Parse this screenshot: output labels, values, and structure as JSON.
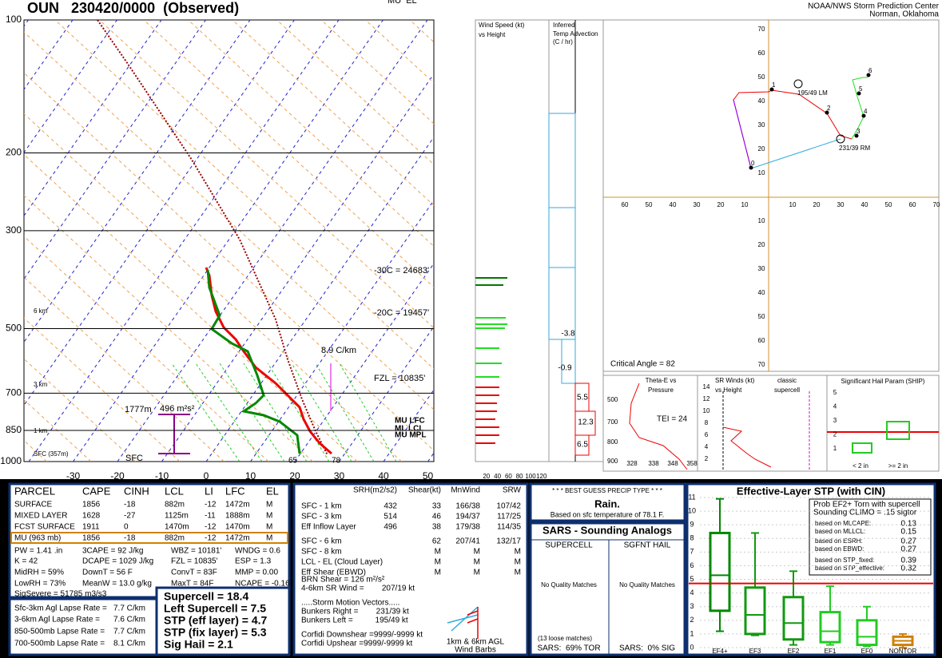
{
  "header": {
    "title": "OUN   230420/0000  (Observed)",
    "org": "NOAA/NWS Storm Prediction Center",
    "location": "Norman, Oklahoma",
    "clipped_label": "MU  EL"
  },
  "skewt": {
    "pressures": [
      100,
      200,
      300,
      500,
      700,
      850,
      1000
    ],
    "temperatures": [
      -30,
      -20,
      -10,
      0,
      10,
      20,
      30,
      40,
      50
    ],
    "heights": [
      "6 km",
      "3 km",
      "1 km",
      "SFC (357m)"
    ],
    "levels": [
      "-30C = 24683'",
      "-20C = 19457'",
      "FZL = 10835'"
    ],
    "lapse_rate": "8.9 C/km",
    "inflow_depth": "1777m",
    "inflow_srh": "496 m²s²",
    "sfc_label": "SFC",
    "dewpoint_label": "65",
    "temp_label": "78",
    "parcel_levels": [
      "MU LFC",
      "ML LCL",
      "MU MPL"
    ]
  },
  "wind_speed": {
    "title": "Wind Speed (kt)",
    "subtitle": "vs Height",
    "ticks": [
      20,
      40,
      60,
      80,
      100,
      120
    ]
  },
  "temp_advection": {
    "title": [
      "Inferred",
      "Temp Advection",
      "(C / hr)"
    ],
    "values": [
      "-3.8",
      "-0.9",
      "5.5",
      "12.3",
      "6.5"
    ]
  },
  "hodograph": {
    "x_left": [
      60,
      50,
      40,
      30,
      20,
      10
    ],
    "x_right": [
      10,
      20,
      30,
      40,
      50,
      60,
      70
    ],
    "y_up": [
      70,
      60,
      50,
      40,
      30,
      20,
      10
    ],
    "y_down": [
      10,
      20,
      30,
      40,
      50,
      60,
      70
    ],
    "points": [
      "0",
      "1",
      "2",
      "3",
      "4",
      "5",
      "6"
    ],
    "left_mover": "195/49 LM",
    "right_mover": "231/39 RM",
    "critical_angle": "Critical Angle = 82"
  },
  "theta_e": {
    "title": [
      "Theta-E vs",
      "Pressure"
    ],
    "x_ticks": [
      "328",
      "338",
      "348",
      "358"
    ],
    "y_ticks": [
      "500",
      "700",
      "800",
      "900"
    ],
    "tei": "TEI = 24"
  },
  "sr_winds": {
    "title": [
      "SR Winds (kt)",
      "vs Height"
    ],
    "ticks": [
      14,
      12,
      10,
      8,
      6,
      4,
      2
    ],
    "note": [
      "classic",
      "supercell"
    ]
  },
  "ship": {
    "title": "Significant Hail Param (SHIP)",
    "ticks": [
      5,
      4,
      3,
      2,
      1
    ],
    "categories": [
      "< 2 in",
      ">= 2 in"
    ]
  },
  "parcel": {
    "headers": [
      "PARCEL",
      "CAPE",
      "CINH",
      "LCL",
      "LI",
      "LFC",
      "EL"
    ],
    "rows": [
      [
        "SURFACE",
        "1856",
        "-18",
        "882m",
        "-12",
        "1472m",
        "M"
      ],
      [
        "MIXED LAYER",
        "1628",
        "-27",
        "1125m",
        "-11",
        "1888m",
        "M"
      ],
      [
        "FCST SURFACE",
        "1911",
        "0",
        "1470m",
        "-12",
        "1470m",
        "M"
      ],
      [
        "MU (963 mb)",
        "1856",
        "-18",
        "882m",
        "-12",
        "1472m",
        "M"
      ]
    ],
    "indices": [
      [
        "PW = 1.41 .in",
        "3CAPE = 92 J/kg",
        "WBZ = 10181'",
        "WNDG = 0.6"
      ],
      [
        "K = 42",
        "DCAPE = 1029 J/kg",
        "FZL = 10835'",
        "ESP = 1.3"
      ],
      [
        "MidRH = 59%",
        "DownT = 56 F",
        "ConvT = 83F",
        "MMP = 0.00"
      ],
      [
        "LowRH = 73%",
        "MeanW = 13.0 g/kg",
        "MaxT = 84F",
        "NCAPE = -0.16"
      ]
    ],
    "sig_severe": "SigSevere = 51785 m3/s3"
  },
  "lapse_rates": [
    [
      "Sfc-3km Agl Lapse Rate =",
      "7.7 C/km"
    ],
    [
      "3-6km Agl Lapse Rate =",
      "7.6 C/km"
    ],
    [
      "850-500mb Lapse Rate =",
      "7.7 C/km"
    ],
    [
      "700-500mb Lapse Rate =",
      "8.1 C/km"
    ]
  ],
  "composite": [
    "Supercell = 18.4",
    "Left Supercell = 7.5",
    "STP (eff layer) = 4.7",
    "STP (fix layer) = 5.3",
    "Sig Hail = 2.1"
  ],
  "kinematics": {
    "headers": [
      "SRH(m2/s2)",
      "Shear(kt)",
      "MnWind",
      "SRW"
    ],
    "rows": [
      {
        "label": "SFC - 1 km",
        "srh": "432",
        "shear": "33",
        "mnwind": "166/38",
        "srw": "107/42"
      },
      {
        "label": "SFC - 3 km",
        "srh": "514",
        "shear": "46",
        "mnwind": "194/37",
        "srw": "117/25"
      },
      {
        "label": "Eff Inflow Layer",
        "srh": "496",
        "shear": "38",
        "mnwind": "179/38",
        "srw": "114/35"
      },
      {
        "label": "SFC - 6 km",
        "shear": "62",
        "mnwind": "207/41",
        "srw": "132/17"
      },
      {
        "label": "SFC - 8 km",
        "shear": "M",
        "mnwind": "M",
        "srw": "M"
      },
      {
        "label": "LCL - EL (Cloud Layer)",
        "shear": "M",
        "mnwind": "M",
        "srw": "M"
      },
      {
        "label": "Eff Shear (EBWD)",
        "shear": "M",
        "mnwind": "M",
        "srw": "M"
      }
    ],
    "lines": [
      "BRN Shear = 126 m²/s²",
      "4-6km SR Wind =        207/19 kt",
      ".....Storm Motion Vectors.....",
      "Bunkers Right =        231/39 kt",
      "Bunkers Left =          195/49 kt",
      "Corfidi Downshear =9999/-9999 kt",
      "Corfidi Upshear =9999/-9999 kt"
    ],
    "barb_note": [
      "1km & 6km AGL",
      "Wind Barbs"
    ]
  },
  "precip": {
    "title": "* * * BEST GUESS PRECIP TYPE * * *",
    "type": "Rain.",
    "basis": "Based on sfc temperature of 78.1 F."
  },
  "sars": {
    "title": "SARS - Sounding Analogs",
    "columns": [
      "SUPERCELL",
      "SGFNT HAIL"
    ],
    "matches": [
      "No Quality Matches",
      "No Quality Matches"
    ],
    "loose": "(13 loose matches)",
    "tor": "SARS:  69% TOR",
    "sig": "SARS:  0% SIG"
  },
  "stp": {
    "title": "Effective-Layer STP (with CIN)",
    "prob_title": [
      "Prob EF2+ Torn with supercell",
      "Sounding CLIMO = .15 sigtor"
    ],
    "factors": [
      [
        "based on MLCAPE:",
        "0.13"
      ],
      [
        "based on MLLCL:",
        "0.15"
      ],
      [
        "based on ESRH:",
        "0.27"
      ],
      [
        "based on EBWD:",
        "0.27"
      ],
      [
        "based on STP_fixed:",
        "0.39"
      ],
      [
        "based on STP_effective:",
        "0.32"
      ]
    ],
    "ylim": [
      0,
      11
    ],
    "yticks": [
      0,
      1,
      2,
      3,
      4,
      5,
      6,
      7,
      8,
      9,
      10,
      11
    ],
    "categories": [
      "EF4+",
      "EF3",
      "EF2",
      "EF1",
      "EF0",
      "NONTOR"
    ],
    "boxes": [
      [
        1.2,
        2.7,
        5.3,
        8.4,
        10.9
      ],
      [
        0.9,
        1.0,
        2.4,
        4.4,
        8.4
      ],
      [
        0.2,
        0.6,
        1.8,
        3.7,
        5.6
      ],
      [
        0.2,
        0.4,
        1.2,
        2.6,
        4.5
      ],
      [
        0.1,
        0.2,
        0.8,
        2.0,
        3.0
      ],
      [
        0,
        0.2,
        0.5,
        0.8,
        1.0
      ]
    ],
    "current": 4.7
  }
}
